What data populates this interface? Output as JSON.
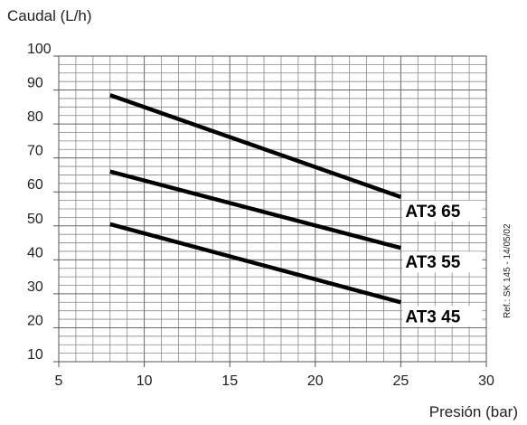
{
  "chart_data": {
    "type": "line",
    "ylabel": "Caudal (L/h)",
    "xlabel": "Presión (bar)",
    "xlim": [
      5,
      30
    ],
    "ylim": [
      10,
      100
    ],
    "x_ticks": [
      5,
      10,
      15,
      20,
      25,
      30
    ],
    "y_ticks": [
      10,
      20,
      30,
      40,
      50,
      60,
      70,
      80,
      90,
      100
    ],
    "grid": true,
    "series": [
      {
        "name": "AT3 65",
        "x": [
          8,
          25
        ],
        "y": [
          88.5,
          58.5
        ]
      },
      {
        "name": "AT3 55",
        "x": [
          8,
          25
        ],
        "y": [
          66,
          43.5
        ]
      },
      {
        "name": "AT3 45",
        "x": [
          8,
          25
        ],
        "y": [
          50.5,
          27.5
        ]
      }
    ],
    "reference_note": "Ref.: SK 145 - 14/05/02"
  }
}
